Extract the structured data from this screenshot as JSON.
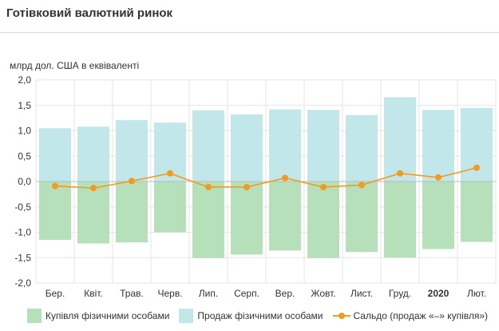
{
  "title": "Готівковий валютний ринок",
  "chart_data": {
    "type": "bar",
    "ylabel": "млрд дол. США в еквіваленті",
    "ylim": [
      -2.0,
      2.0
    ],
    "yticks": [
      "2,0",
      "1,5",
      "1,0",
      "0,5",
      "0,0",
      "-0,5",
      "-1,0",
      "-1,5",
      "-2,0"
    ],
    "categories": [
      "Бер.",
      "Квіт.",
      "Трав.",
      "Черв.",
      "Лип.",
      "Серп.",
      "Вер.",
      "Жовт.",
      "Лист.",
      "Груд.",
      "2020",
      "Лют."
    ],
    "bold_categories": [
      "2020"
    ],
    "grid": true,
    "legend_position": "bottom",
    "series": [
      {
        "name": "Купівля фізичними особами",
        "type": "bar",
        "color": "#b5e0b9",
        "values": [
          -1.15,
          -1.22,
          -1.2,
          -1.0,
          -1.51,
          -1.44,
          -1.36,
          -1.51,
          -1.39,
          -1.5,
          -1.33,
          -1.19
        ]
      },
      {
        "name": "Продаж фізичними особами",
        "type": "bar",
        "color": "#c2e7ea",
        "values": [
          1.05,
          1.08,
          1.21,
          1.16,
          1.4,
          1.32,
          1.42,
          1.41,
          1.31,
          1.66,
          1.41,
          1.45
        ]
      },
      {
        "name": "Сальдо (продаж «–» купівля»)",
        "type": "line",
        "color": "#f39a1f",
        "values": [
          -0.09,
          -0.13,
          0.01,
          0.16,
          -0.11,
          -0.11,
          0.07,
          -0.11,
          -0.07,
          0.16,
          0.08,
          0.27
        ]
      }
    ]
  }
}
